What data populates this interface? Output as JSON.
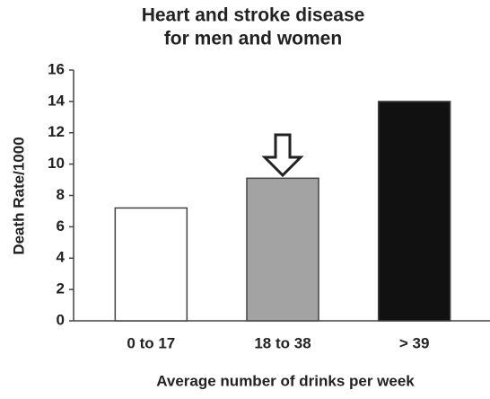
{
  "chart_data": {
    "type": "bar",
    "title": [
      "Heart and stroke disease",
      "for men and women"
    ],
    "x_label": "Average number of drinks per week",
    "y_label": "Death Rate/1000",
    "categories": [
      "0 to 17",
      "18 to 38",
      "> 39"
    ],
    "values": [
      7.2,
      9.1,
      14
    ],
    "colors": [
      "#ffffff",
      "#a3a3a3",
      "#111111"
    ],
    "ylim": [
      0,
      16
    ],
    "yticks": [
      0,
      2,
      4,
      6,
      8,
      10,
      12,
      14,
      16
    ],
    "grid": false
  }
}
